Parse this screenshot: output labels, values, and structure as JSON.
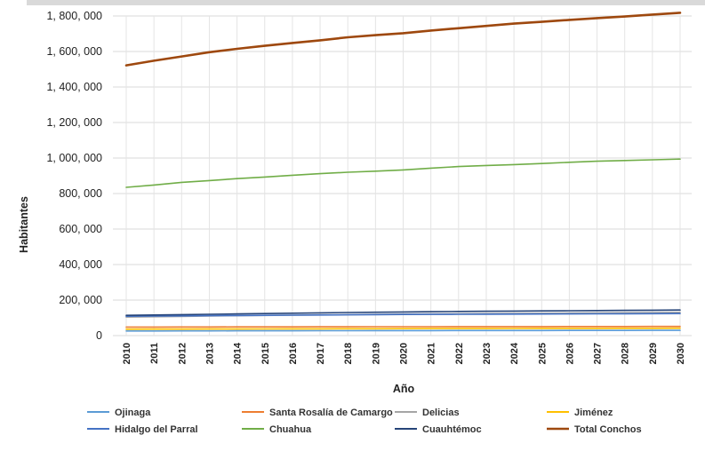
{
  "chart_data": {
    "type": "line",
    "title": "",
    "xlabel": "Año",
    "ylabel": "Habitantes",
    "ylim": [
      0,
      1800000
    ],
    "yticks": [
      0,
      200000,
      400000,
      600000,
      800000,
      1000000,
      1200000,
      1400000,
      1600000,
      1800000
    ],
    "ytick_labels": [
      "0",
      "200, 000",
      "400, 000",
      "600, 000",
      "800, 000",
      "1, 000, 000",
      "1, 200, 000",
      "1, 400, 000",
      "1, 600, 000",
      "1, 800, 000"
    ],
    "x": [
      "2010",
      "2011",
      "2012",
      "2013",
      "2014",
      "2015",
      "2016",
      "2017",
      "2018",
      "2019",
      "2020",
      "2021",
      "2022",
      "2023",
      "2024",
      "2025",
      "2026",
      "2027",
      "2028",
      "2029",
      "2030"
    ],
    "grid": true,
    "legend_position": "bottom",
    "series": [
      {
        "name": "Ojinaga",
        "color": "#5b9bd5",
        "values": [
          26000,
          26200,
          26400,
          26600,
          26800,
          27000,
          27200,
          27400,
          27600,
          27800,
          28000,
          28150,
          28300,
          28450,
          28600,
          28750,
          28900,
          29050,
          29200,
          29350,
          29500
        ]
      },
      {
        "name": "Santa Rosalía de Camargo",
        "color": "#ed7d31",
        "values": [
          48000,
          48200,
          48400,
          48600,
          48800,
          49000,
          49200,
          49400,
          49600,
          49800,
          50000,
          50150,
          50300,
          50450,
          50600,
          50750,
          50900,
          51050,
          51200,
          51350,
          51500
        ]
      },
      {
        "name": "Delicias",
        "color": "#a5a5a5",
        "values": [
          104000,
          106000,
          108000,
          110000,
          112000,
          113500,
          115000,
          116500,
          118000,
          119500,
          121000,
          122000,
          123000,
          124000,
          125000,
          126000,
          127000,
          128000,
          129000,
          130000,
          131000
        ]
      },
      {
        "name": "Jiménez",
        "color": "#ffc000",
        "values": [
          36000,
          36300,
          36600,
          36900,
          37200,
          37500,
          37800,
          38100,
          38400,
          38700,
          39000,
          39250,
          39500,
          39750,
          40000,
          40250,
          40500,
          40750,
          41000,
          41250,
          41500
        ]
      },
      {
        "name": "Hidalgo del Parral",
        "color": "#4472c4",
        "values": [
          109000,
          110000,
          111000,
          112000,
          113000,
          114000,
          115000,
          116000,
          117000,
          118000,
          119000,
          119500,
          120000,
          120500,
          121000,
          121500,
          122000,
          122500,
          123000,
          123500,
          124000
        ]
      },
      {
        "name": "Chuahua",
        "color": "#70ad47",
        "values": [
          835000,
          848000,
          863000,
          873000,
          884000,
          893000,
          903000,
          912000,
          920000,
          926000,
          933000,
          943000,
          952000,
          958000,
          963000,
          969000,
          976000,
          982000,
          986000,
          990000,
          994000
        ]
      },
      {
        "name": "Cuauhtémoc",
        "color": "#264478",
        "values": [
          114000,
          116000,
          118000,
          120000,
          122000,
          124000,
          126000,
          128000,
          130000,
          131500,
          133000,
          134500,
          136000,
          137000,
          138000,
          139000,
          140000,
          141000,
          142000,
          143000,
          144000
        ]
      },
      {
        "name": "Total Conchos",
        "color": "#9e480e",
        "values": [
          1522000,
          1548000,
          1572000,
          1596000,
          1615000,
          1632000,
          1648000,
          1663000,
          1680000,
          1692000,
          1703000,
          1718000,
          1731000,
          1744000,
          1757000,
          1767000,
          1778000,
          1788000,
          1797000,
          1808000,
          1818000
        ]
      }
    ]
  }
}
